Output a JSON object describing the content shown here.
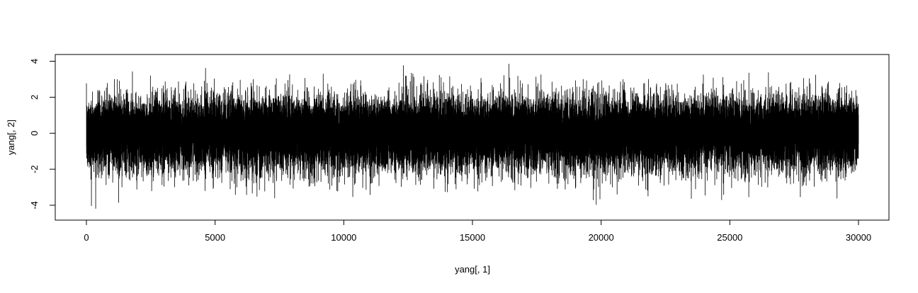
{
  "chart_data": {
    "type": "line",
    "xlabel": "yang[, 1]",
    "ylabel": "yang[, 2]",
    "xlim": [
      0,
      30000
    ],
    "ylim": [
      -4.4,
      4.0
    ],
    "x_ticks": [
      "0",
      "5000",
      "10000",
      "15000",
      "20000",
      "25000",
      "30000"
    ],
    "y_ticks": [
      "-4",
      "-2",
      "0",
      "2",
      "4"
    ],
    "series": [
      {
        "n_points": 30000,
        "x_start": 1,
        "x_end": 30000,
        "mean": 0,
        "sd": 1,
        "min": -4.4,
        "max": 4.0,
        "color": "#000000"
      }
    ],
    "grid": false,
    "legend": "none"
  }
}
